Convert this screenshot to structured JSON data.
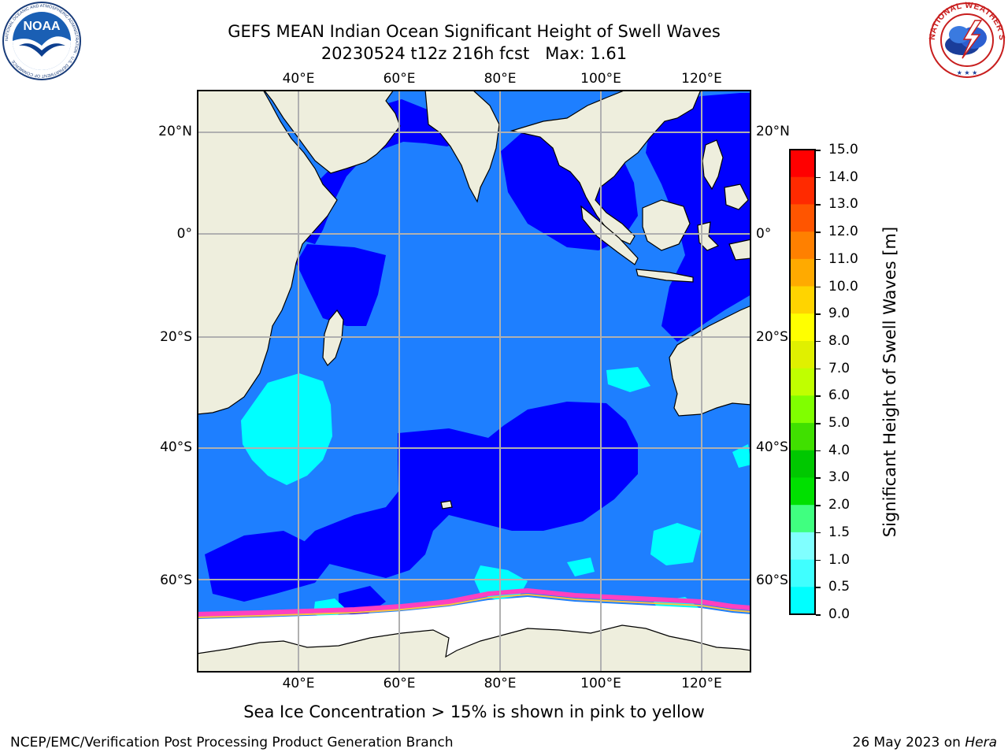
{
  "title": {
    "line1": "GEFS MEAN Indian Ocean Significant Height of Swell Waves",
    "line2": "20230524 t12z 216h fcst   Max: 1.61"
  },
  "map": {
    "lon_ticks": [
      "40°E",
      "60°E",
      "80°E",
      "100°E",
      "120°E"
    ],
    "lat_ticks": [
      "20°N",
      "0°",
      "20°S",
      "40°S",
      "60°S"
    ],
    "colors": {
      "land": "#eeeedd",
      "ice": "#ffffff",
      "grid": "#b0b0b0",
      "swell_0_05": "#0000ff",
      "swell_05_10": "#1e7fff",
      "swell_10_15": "#00ffff",
      "sea_ice_edge": [
        "#ff40c0",
        "#ff80a0",
        "#ffc040"
      ]
    }
  },
  "colorbar": {
    "label": "Significant Height of Swell Waves [m]",
    "ticks": [
      "15.0",
      "14.0",
      "13.0",
      "12.0",
      "11.0",
      "10.0",
      "9.0",
      "8.0",
      "7.0",
      "6.0",
      "5.0",
      "4.0",
      "3.0",
      "2.0",
      "1.5",
      "1.0",
      "0.5",
      "0.0"
    ],
    "colors_top_to_bottom": [
      "#ff0000",
      "#ff2a00",
      "#ff5500",
      "#ff8000",
      "#ffaa00",
      "#ffd400",
      "#ffff00",
      "#e0f000",
      "#c0ff00",
      "#80ff00",
      "#40e000",
      "#00c800",
      "#00e000",
      "#40ff80",
      "#80ffff",
      "#40ffff",
      "#00ffff",
      "#1e7fff",
      "#0000ff"
    ]
  },
  "caption": "Sea Ice Concentration > 15% is shown in pink to yellow",
  "footer": {
    "left": "NCEP/EMC/Verification Post Processing Product Generation Branch",
    "right_prefix": "26 May 2023 on ",
    "right_machine": "Hera"
  },
  "logos": {
    "noaa": {
      "text": "NOAA",
      "ring_text": "NATIONAL OCEANIC AND ATMOSPHERIC ADMINISTRATION · U.S. DEPARTMENT OF COMMERCE"
    },
    "nws": {
      "ring_text": "NATIONAL WEATHER SERVICE"
    }
  }
}
